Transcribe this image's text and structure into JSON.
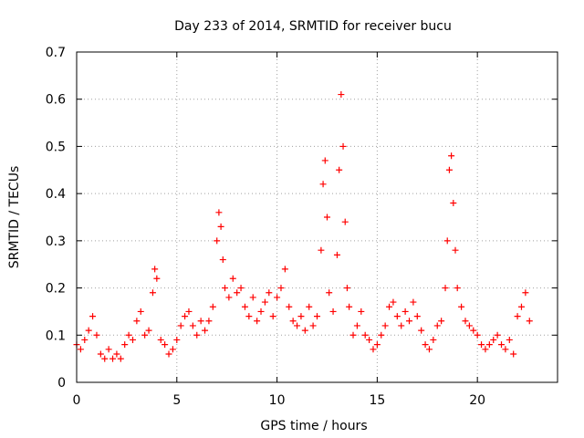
{
  "chart_data": {
    "type": "scatter",
    "title": "Day 233 of 2014, SRMTID for receiver bucu",
    "xlabel": "GPS time / hours",
    "ylabel": "SRMTID / TECUs",
    "xlim": [
      0,
      24
    ],
    "ylim": [
      0,
      0.7
    ],
    "xticks": [
      0,
      5,
      10,
      15,
      20
    ],
    "yticks": [
      0,
      0.1,
      0.2,
      0.3,
      0.4,
      0.5,
      0.6,
      0.7
    ],
    "xtick_labels": [
      "0",
      "5",
      "10",
      "15",
      "20"
    ],
    "ytick_labels": [
      "0",
      "0.1",
      "0.2",
      "0.3",
      "0.4",
      "0.5",
      "0.6",
      "0.7"
    ],
    "grid": true,
    "marker": "+",
    "color": "#ff0000",
    "series": [
      {
        "name": "SRMTID",
        "x": [
          0.0,
          0.2,
          0.4,
          0.6,
          0.8,
          1.0,
          1.2,
          1.4,
          1.6,
          1.8,
          2.0,
          2.2,
          2.4,
          2.6,
          2.8,
          3.0,
          3.2,
          3.4,
          3.6,
          3.8,
          3.9,
          4.0,
          4.2,
          4.4,
          4.6,
          4.8,
          5.0,
          5.2,
          5.4,
          5.6,
          5.8,
          6.0,
          6.2,
          6.4,
          6.6,
          6.8,
          7.0,
          7.1,
          7.2,
          7.3,
          7.4,
          7.6,
          7.8,
          8.0,
          8.2,
          8.4,
          8.6,
          8.8,
          9.0,
          9.2,
          9.4,
          9.6,
          9.8,
          10.0,
          10.2,
          10.4,
          10.6,
          10.8,
          11.0,
          11.2,
          11.4,
          11.6,
          11.8,
          12.0,
          12.2,
          12.3,
          12.4,
          12.5,
          12.6,
          12.8,
          13.0,
          13.1,
          13.2,
          13.3,
          13.4,
          13.5,
          13.6,
          13.8,
          14.0,
          14.2,
          14.4,
          14.6,
          14.8,
          15.0,
          15.2,
          15.4,
          15.6,
          15.8,
          16.0,
          16.2,
          16.4,
          16.6,
          16.8,
          17.0,
          17.2,
          17.4,
          17.6,
          17.8,
          18.0,
          18.2,
          18.4,
          18.5,
          18.6,
          18.7,
          18.8,
          18.9,
          19.0,
          19.2,
          19.4,
          19.6,
          19.8,
          20.0,
          20.2,
          20.4,
          20.6,
          20.8,
          21.0,
          21.2,
          21.4,
          21.6,
          21.8,
          22.0,
          22.2,
          22.4,
          22.6
        ],
        "y": [
          0.08,
          0.07,
          0.09,
          0.11,
          0.14,
          0.1,
          0.06,
          0.05,
          0.07,
          0.05,
          0.06,
          0.05,
          0.08,
          0.1,
          0.09,
          0.13,
          0.15,
          0.1,
          0.11,
          0.19,
          0.24,
          0.22,
          0.09,
          0.08,
          0.06,
          0.07,
          0.09,
          0.12,
          0.14,
          0.15,
          0.12,
          0.1,
          0.13,
          0.11,
          0.13,
          0.16,
          0.3,
          0.36,
          0.33,
          0.26,
          0.2,
          0.18,
          0.22,
          0.19,
          0.2,
          0.16,
          0.14,
          0.18,
          0.13,
          0.15,
          0.17,
          0.19,
          0.14,
          0.18,
          0.2,
          0.24,
          0.16,
          0.13,
          0.12,
          0.14,
          0.11,
          0.16,
          0.12,
          0.14,
          0.28,
          0.42,
          0.47,
          0.35,
          0.19,
          0.15,
          0.27,
          0.45,
          0.61,
          0.5,
          0.34,
          0.2,
          0.16,
          0.1,
          0.12,
          0.15,
          0.1,
          0.09,
          0.07,
          0.08,
          0.1,
          0.12,
          0.16,
          0.17,
          0.14,
          0.12,
          0.15,
          0.13,
          0.17,
          0.14,
          0.11,
          0.08,
          0.07,
          0.09,
          0.12,
          0.13,
          0.2,
          0.3,
          0.45,
          0.48,
          0.38,
          0.28,
          0.2,
          0.16,
          0.13,
          0.12,
          0.11,
          0.1,
          0.08,
          0.07,
          0.08,
          0.09,
          0.1,
          0.08,
          0.07,
          0.09,
          0.06,
          0.14,
          0.16,
          0.19,
          0.13
        ]
      }
    ]
  }
}
